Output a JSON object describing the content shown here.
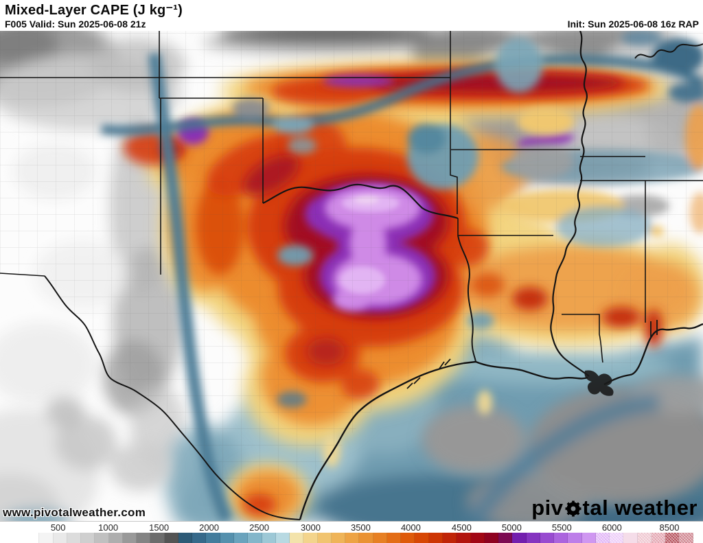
{
  "header": {
    "title": "Mixed-Layer CAPE (J kg⁻¹)",
    "subtitle": "F005 Valid: Sun 2025-06-08 21z",
    "init": "Init: Sun 2025-06-08 16z RAP"
  },
  "map": {
    "watermark": "www.pivotalweather.com",
    "logo": {
      "part1": "piv",
      "part2": "tal weather"
    },
    "palette": {
      "low_gray": "#9c9c9c",
      "marginal_blue": "#4c7b96",
      "light_blue": "#b8d9e2",
      "tan": "#f2d47f",
      "orange": "#ec8c2f",
      "red": "#d63c08",
      "crimson": "#a30b24",
      "purple": "#8b2fb5",
      "pink_core": "#cf8ae6",
      "pink_light": "#e2b4f3"
    }
  },
  "colorbar": {
    "labels": [
      {
        "t": "500",
        "x": 0.049
      },
      {
        "t": "1000",
        "x": 0.124
      },
      {
        "t": "1500",
        "x": 0.2
      },
      {
        "t": "2000",
        "x": 0.275
      },
      {
        "t": "2500",
        "x": 0.35
      },
      {
        "t": "3000",
        "x": 0.427
      },
      {
        "t": "3500",
        "x": 0.502
      },
      {
        "t": "4000",
        "x": 0.577
      },
      {
        "t": "4500",
        "x": 0.653
      },
      {
        "t": "5000",
        "x": 0.728
      },
      {
        "t": "5500",
        "x": 0.803
      },
      {
        "t": "6000",
        "x": 0.878
      },
      {
        "t": "8500",
        "x": 0.964
      }
    ],
    "cells": [
      {
        "c": "#ffffff"
      },
      {
        "c": "#f4f4f4"
      },
      {
        "c": "#e9e9e9"
      },
      {
        "c": "#dcdcdc"
      },
      {
        "c": "#cfcfcf"
      },
      {
        "c": "#c0c0c0"
      },
      {
        "c": "#aeaeae"
      },
      {
        "c": "#999999"
      },
      {
        "c": "#838383"
      },
      {
        "c": "#6c6c6c"
      },
      {
        "c": "#545454"
      },
      {
        "c": "#2d5a76"
      },
      {
        "c": "#36698a"
      },
      {
        "c": "#437c9c"
      },
      {
        "c": "#5590ad"
      },
      {
        "c": "#6aa3bd"
      },
      {
        "c": "#83b6ca"
      },
      {
        "c": "#9dc8d6"
      },
      {
        "c": "#b8d9e2"
      },
      {
        "c": "#f3e3ab"
      },
      {
        "c": "#f3d48c"
      },
      {
        "c": "#f1c470"
      },
      {
        "c": "#efb458"
      },
      {
        "c": "#eda344"
      },
      {
        "c": "#ea9233"
      },
      {
        "c": "#e78024"
      },
      {
        "c": "#e36d16"
      },
      {
        "c": "#de5a0a"
      },
      {
        "c": "#d74704"
      },
      {
        "c": "#cd3503"
      },
      {
        "c": "#c02407"
      },
      {
        "c": "#b2140d"
      },
      {
        "c": "#a10715"
      },
      {
        "c": "#8e0220"
      },
      {
        "c": "#7c0a52"
      },
      {
        "c": "#731fae"
      },
      {
        "c": "#8534c0"
      },
      {
        "c": "#984bd0"
      },
      {
        "c": "#ab64de"
      },
      {
        "c": "#bd7ee9"
      },
      {
        "c": "#cf97f1"
      },
      {
        "c": "#dfb0f6",
        "h": true
      },
      {
        "c": "#eccaf8",
        "h": true
      },
      {
        "c": "#f5dde9"
      },
      {
        "c": "#eec3cd",
        "h": true
      },
      {
        "c": "#e2a0ac",
        "h": true
      },
      {
        "c": "#b24753",
        "h": true
      },
      {
        "c": "#cd7e89",
        "h": true
      }
    ]
  }
}
